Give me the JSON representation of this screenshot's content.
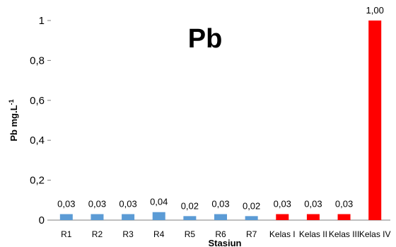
{
  "chart_data": {
    "type": "bar",
    "title": "Pb",
    "xlabel": "Stasiun",
    "ylabel_main": "Pb mg.L",
    "ylabel_sup": "-1",
    "categories": [
      "R1",
      "R2",
      "R3",
      "R4",
      "R5",
      "R6",
      "R7",
      "Kelas I",
      "Kelas II",
      "Kelas III",
      "Kelas IV"
    ],
    "values": [
      0.03,
      0.03,
      0.03,
      0.04,
      0.02,
      0.03,
      0.02,
      0.03,
      0.03,
      0.03,
      1.0
    ],
    "data_labels": [
      "0,03",
      "0,03",
      "0,03",
      "0,04",
      "0,02",
      "0,03",
      "0,02",
      "0,03",
      "0,03",
      "0,03",
      "1,00"
    ],
    "bar_colors": [
      "#5b9bd5",
      "#5b9bd5",
      "#5b9bd5",
      "#5b9bd5",
      "#5b9bd5",
      "#5b9bd5",
      "#5b9bd5",
      "#ff0000",
      "#ff0000",
      "#ff0000",
      "#ff0000"
    ],
    "ylim": [
      0,
      1
    ],
    "yticks": [
      0,
      0.2,
      0.4,
      0.6,
      0.8,
      1
    ],
    "ytick_labels": [
      "0",
      "0,2",
      "0,4",
      "0,6",
      "0,8",
      "1"
    ],
    "grid": false,
    "legend": "none"
  }
}
